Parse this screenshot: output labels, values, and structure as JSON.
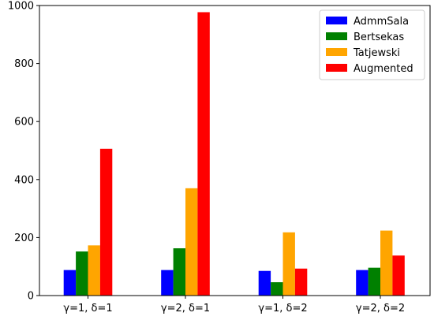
{
  "chart_data": {
    "type": "bar",
    "categories": [
      "γ=1, δ=1",
      "γ=2, δ=1",
      "γ=1, δ=2",
      "γ=2, δ=2"
    ],
    "series": [
      {
        "name": "AdmmSala",
        "color": "#0000ff",
        "values": [
          88,
          88,
          85,
          88
        ]
      },
      {
        "name": "Bertsekas",
        "color": "#008000",
        "values": [
          152,
          163,
          46,
          96
        ]
      },
      {
        "name": "Tatjewski",
        "color": "#ffa500",
        "values": [
          173,
          370,
          218,
          224
        ]
      },
      {
        "name": "Augmented",
        "color": "#ff0000",
        "values": [
          506,
          977,
          93,
          138
        ]
      }
    ],
    "ylim": [
      0,
      1000
    ],
    "yticks": [
      0,
      200,
      400,
      600,
      800,
      1000
    ],
    "xlabel": "",
    "ylabel": "",
    "title": "",
    "legend_position": "top-right",
    "grid": false
  }
}
